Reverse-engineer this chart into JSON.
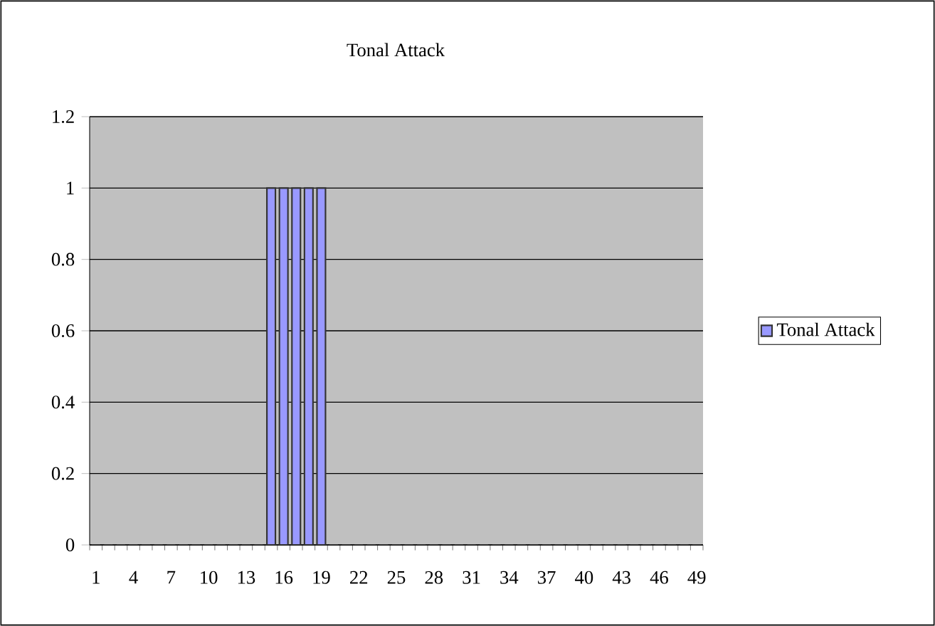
{
  "chart_data": {
    "type": "bar",
    "title": "Tonal Attack",
    "categories": [
      "1",
      null,
      null,
      "4",
      null,
      null,
      "7",
      null,
      null,
      "10",
      null,
      null,
      "13",
      null,
      null,
      "16",
      null,
      null,
      "19",
      null,
      null,
      "22",
      null,
      null,
      "25",
      null,
      null,
      "28",
      null,
      null,
      "31",
      null,
      null,
      "34",
      null,
      null,
      "37",
      null,
      null,
      "40",
      null,
      null,
      "43",
      null,
      null,
      "46",
      null,
      null,
      "49"
    ],
    "series": [
      {
        "name": "Tonal Attack",
        "color": "#9999ff",
        "values": [
          0,
          0,
          0,
          0,
          0,
          0,
          0,
          0,
          0,
          0,
          0,
          0,
          0,
          0,
          1,
          1,
          1,
          1,
          1,
          0,
          0,
          0,
          0,
          0,
          0,
          0,
          0,
          0,
          0,
          0,
          0,
          0,
          0,
          0,
          0,
          0,
          0,
          0,
          0,
          0,
          0,
          0,
          0,
          0,
          0,
          0,
          0,
          0,
          0
        ]
      }
    ],
    "ylim": [
      0,
      1.2
    ],
    "yticks": [
      0,
      0.2,
      0.4,
      0.6,
      0.8,
      1,
      1.2
    ],
    "grid": "y",
    "legend": "right"
  }
}
